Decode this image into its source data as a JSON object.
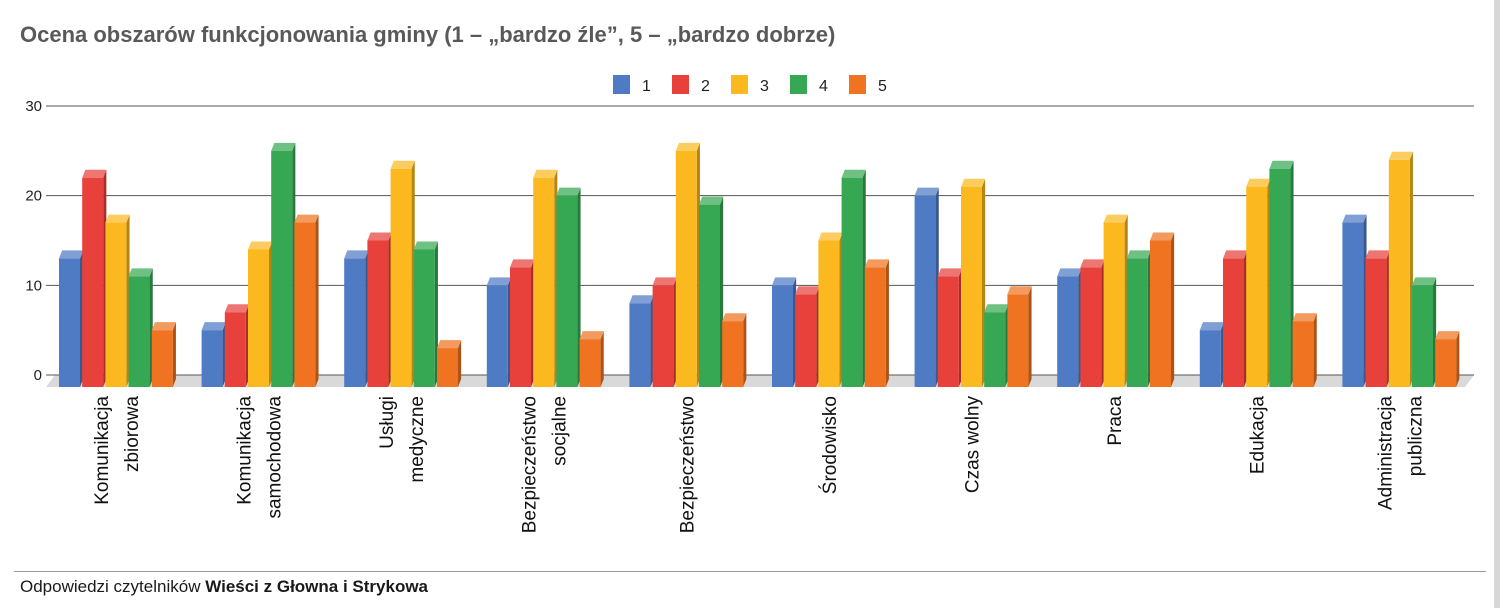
{
  "title": "Ocena obszarów funkcjonowania gminy (1 – „bardzo źle”, 5 – „bardzo dobrze)",
  "footer": {
    "prefix": "Odpowiedzi czytelników",
    "source": "Wieści z Głowna i Strykowa"
  },
  "chart_data": {
    "type": "bar",
    "categories": [
      [
        "Komunikacja",
        "zbiorowa"
      ],
      [
        "Komunikacja",
        "samochodowa"
      ],
      [
        "Usługi",
        "medyczne"
      ],
      [
        "Bezpieczeństwo",
        "socjalne"
      ],
      [
        "Bezpieczeństwo"
      ],
      [
        "Środowisko"
      ],
      [
        "Czas wolny"
      ],
      [
        "Praca"
      ],
      [
        "Edukacja"
      ],
      [
        "Administracja",
        "publiczna"
      ]
    ],
    "series": [
      {
        "name": "1",
        "color": "#4f7bc4",
        "values": [
          13,
          5,
          13,
          10,
          8,
          10,
          20,
          11,
          5,
          17
        ]
      },
      {
        "name": "2",
        "color": "#e8413b",
        "values": [
          22,
          7,
          15,
          12,
          10,
          9,
          11,
          12,
          13,
          13
        ]
      },
      {
        "name": "3",
        "color": "#fbb91f",
        "values": [
          17,
          14,
          23,
          22,
          25,
          15,
          21,
          17,
          21,
          24
        ]
      },
      {
        "name": "4",
        "color": "#36a853",
        "values": [
          11,
          25,
          14,
          20,
          19,
          22,
          7,
          13,
          23,
          10
        ]
      },
      {
        "name": "5",
        "color": "#ef7321",
        "values": [
          5,
          17,
          3,
          4,
          6,
          12,
          9,
          15,
          6,
          4
        ]
      }
    ],
    "ylim": [
      0,
      30
    ],
    "yticks": [
      0,
      10,
      20,
      30
    ],
    "grid": true,
    "legend": "top-center"
  }
}
